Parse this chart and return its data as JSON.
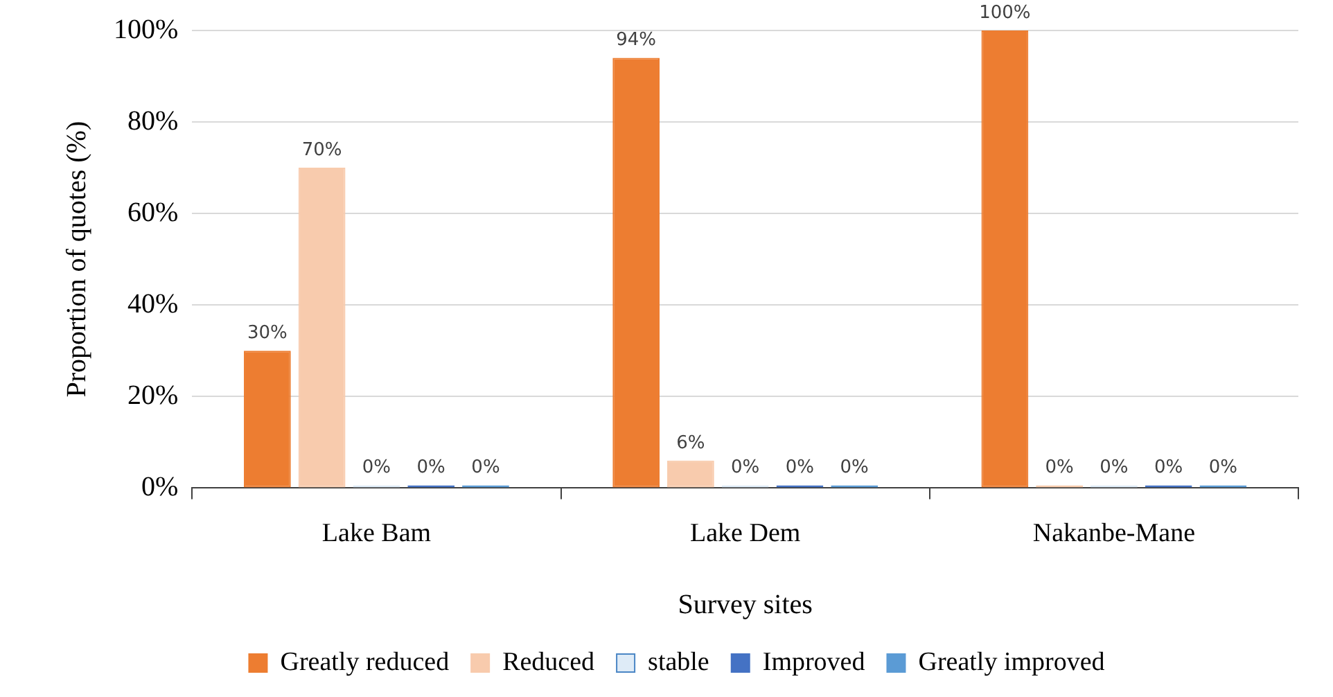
{
  "chart_data": {
    "type": "bar",
    "xlabel": "Survey sites",
    "ylabel": "Proportion of quotes (%)",
    "categories": [
      "Lake Bam",
      "Lake Dem",
      "Nakanbe-Mane"
    ],
    "series": [
      {
        "name": "Greatly reduced",
        "color": "#ed7d31",
        "values": [
          30,
          94,
          100
        ],
        "value_labels": [
          "30%",
          "94%",
          "100%"
        ]
      },
      {
        "name": "Reduced",
        "color": "#f8cbad",
        "values": [
          70,
          6,
          0
        ],
        "value_labels": [
          "70%",
          "6%",
          "0%"
        ]
      },
      {
        "name": "stable",
        "color": "#deebf7",
        "values": [
          0,
          0,
          0
        ],
        "value_labels": [
          "0%",
          "0%",
          "0%"
        ]
      },
      {
        "name": "Improved",
        "color": "#4472c4",
        "values": [
          0,
          0,
          0
        ],
        "value_labels": [
          "0%",
          "0%",
          "0%"
        ]
      },
      {
        "name": "Greatly improved",
        "color": "#5b9bd5",
        "values": [
          0,
          0,
          0
        ],
        "value_labels": [
          "0%",
          "0%",
          "0%"
        ]
      }
    ],
    "ylim": [
      0,
      100
    ],
    "yticks": [
      {
        "value": 0,
        "label": "0%"
      },
      {
        "value": 20,
        "label": "20%"
      },
      {
        "value": 40,
        "label": "40%"
      },
      {
        "value": 60,
        "label": "60%"
      },
      {
        "value": 80,
        "label": "80%"
      },
      {
        "value": 100,
        "label": "100%"
      }
    ],
    "grid": "y",
    "legend": "bottom"
  }
}
